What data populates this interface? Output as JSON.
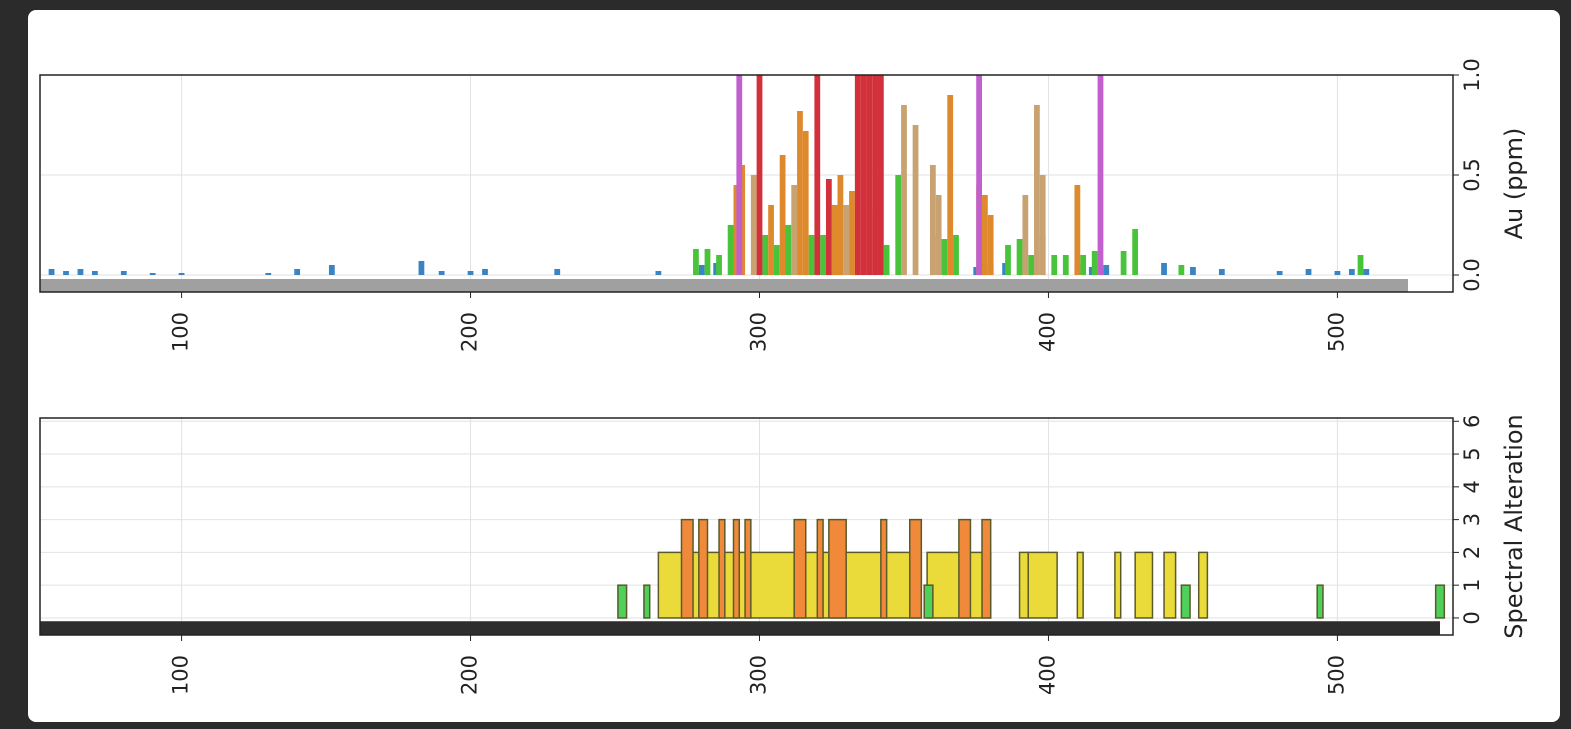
{
  "chart_data": [
    {
      "type": "bar",
      "y_label": "Au (ppm)",
      "xlim": [
        51,
        540
      ],
      "xticks": [
        100,
        200,
        300,
        400,
        500
      ],
      "ylim": [
        -0.085,
        1.0
      ],
      "yticks": [
        {
          "value": 0,
          "label": "0.0"
        },
        {
          "value": 0.5,
          "label": "0.5"
        },
        {
          "value": 1.0,
          "label": "1.0"
        }
      ],
      "grid": true,
      "bar_width": 2,
      "series": [
        {
          "color": "#3a84c4",
          "x": [
            55,
            60,
            65,
            70,
            80,
            90,
            100,
            130,
            140,
            152,
            183,
            190,
            200,
            205,
            230,
            265,
            280,
            285,
            375,
            380,
            385,
            395,
            410,
            415,
            420,
            440,
            450,
            460,
            480,
            490,
            500,
            505,
            510
          ],
          "values": [
            0.03,
            0.02,
            0.03,
            0.02,
            0.02,
            0.01,
            0.01,
            0.01,
            0.03,
            0.05,
            0.07,
            0.02,
            0.02,
            0.03,
            0.03,
            0.02,
            0.05,
            0.06,
            0.04,
            0.05,
            0.06,
            0.03,
            0.05,
            0.04,
            0.05,
            0.06,
            0.04,
            0.03,
            0.02,
            0.03,
            0.02,
            0.03,
            0.03
          ]
        },
        {
          "color": "#49c43a",
          "x": [
            278,
            282,
            286,
            290,
            302,
            306,
            310,
            318,
            322,
            344,
            348,
            360,
            364,
            368,
            386,
            390,
            394,
            398,
            402,
            406,
            412,
            416,
            426,
            430,
            446,
            508
          ],
          "values": [
            0.13,
            0.13,
            0.1,
            0.25,
            0.2,
            0.15,
            0.25,
            0.2,
            0.2,
            0.15,
            0.5,
            0.2,
            0.18,
            0.2,
            0.15,
            0.18,
            0.1,
            0.2,
            0.1,
            0.1,
            0.1,
            0.12,
            0.12,
            0.23,
            0.05,
            0.1
          ]
        },
        {
          "color": "#c9a272",
          "x": [
            298,
            312,
            330,
            338,
            350,
            354,
            360,
            362,
            392,
            396,
            398
          ],
          "values": [
            0.5,
            0.45,
            0.35,
            0.32,
            0.85,
            0.75,
            0.55,
            0.4,
            0.4,
            0.85,
            0.5
          ]
        },
        {
          "color": "#de8a2c",
          "x": [
            292,
            294,
            304,
            308,
            314,
            316,
            326,
            328,
            332,
            366,
            376,
            378,
            380,
            410
          ],
          "values": [
            0.45,
            0.55,
            0.35,
            0.6,
            0.82,
            0.72,
            0.35,
            0.5,
            0.42,
            0.9,
            0.45,
            0.4,
            0.3,
            0.45
          ]
        },
        {
          "color": "#d2303a",
          "x": [
            300,
            320,
            324,
            334,
            336,
            338,
            340,
            342
          ],
          "values": [
            1.0,
            1.0,
            0.48,
            1.0,
            1.0,
            1.0,
            1.0,
            1.0
          ]
        },
        {
          "color": "#c25fcf",
          "x": [
            293,
            376,
            418
          ],
          "values": [
            1.0,
            1.0,
            1.0
          ]
        }
      ]
    },
    {
      "type": "interval",
      "y_label": "Spectral Alteration",
      "xlim": [
        51,
        540
      ],
      "xticks": [
        100,
        200,
        300,
        400,
        500
      ],
      "ylim": [
        -0.52,
        6.1
      ],
      "yticks": [
        0,
        1,
        2,
        3,
        4,
        5,
        6
      ],
      "grid": true,
      "series": [
        {
          "color": "#eadb3a",
          "x": [
            265,
            358,
            390,
            393,
            410,
            423,
            430,
            440,
            452
          ],
          "x_end": [
            356,
            380,
            393,
            403,
            412,
            425,
            436,
            444,
            455
          ],
          "values": [
            2,
            2,
            2,
            2,
            2,
            2,
            2,
            2,
            2
          ]
        },
        {
          "color": "#f08a3a",
          "x": [
            273,
            279,
            286,
            291,
            295,
            312,
            320,
            324,
            342,
            352,
            369,
            377
          ],
          "x_end": [
            277,
            282,
            288,
            293,
            297,
            316,
            322,
            330,
            344,
            356,
            373,
            380
          ],
          "values": [
            3,
            3,
            3,
            3,
            3,
            3,
            3,
            3,
            3,
            3,
            3,
            3
          ]
        },
        {
          "color": "#4fd05a",
          "x": [
            251,
            260,
            357,
            446,
            493,
            534
          ],
          "x_end": [
            254,
            262,
            360,
            449,
            495,
            537
          ],
          "values": [
            1,
            1,
            1,
            1,
            1,
            1
          ]
        }
      ]
    }
  ]
}
